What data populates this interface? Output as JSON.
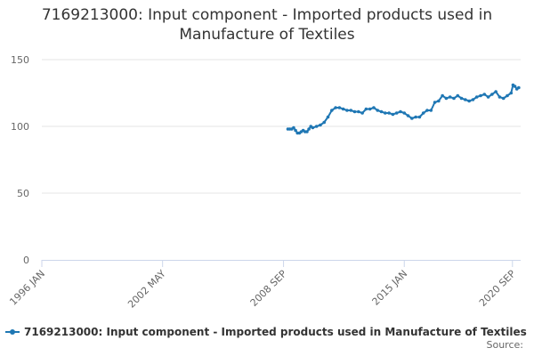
{
  "colors": {
    "series": "#1f77b4",
    "grid": "#e6e6e6",
    "axis": "#ccd6eb"
  },
  "chart_data": {
    "type": "line",
    "title": "7169213000: Input component - Imported products used in Manufacture of Textiles",
    "title_lines": [
      "7169213000: Input component - Imported products used in",
      "Manufacture of Textiles"
    ],
    "xlabel": "",
    "ylabel": "",
    "ylim": [
      0,
      150
    ],
    "y_ticks": [
      0,
      50,
      100,
      150
    ],
    "x_range": [
      1996.0,
      2021.1
    ],
    "x_ticks": [
      {
        "label": "1996 JAN",
        "x": 1996.0
      },
      {
        "label": "2002 MAY",
        "x": 2002.33
      },
      {
        "label": "2008 SEP",
        "x": 2008.67
      },
      {
        "label": "2015 JAN",
        "x": 2015.0
      },
      {
        "label": "2020 SEP",
        "x": 2020.67
      }
    ],
    "legend_position": "bottom",
    "series": [
      {
        "name": "7169213000: Input component - Imported products used in Manufacture of Textiles",
        "x": [
          2008.9,
          2009.0,
          2009.1,
          2009.2,
          2009.3,
          2009.4,
          2009.5,
          2009.6,
          2009.7,
          2009.8,
          2009.9,
          2010.0,
          2010.1,
          2010.2,
          2010.4,
          2010.6,
          2010.8,
          2011.0,
          2011.2,
          2011.4,
          2011.6,
          2011.8,
          2012.0,
          2012.2,
          2012.4,
          2012.6,
          2012.8,
          2013.0,
          2013.2,
          2013.4,
          2013.6,
          2013.8,
          2014.0,
          2014.2,
          2014.4,
          2014.6,
          2014.8,
          2015.0,
          2015.2,
          2015.4,
          2015.6,
          2015.8,
          2016.0,
          2016.2,
          2016.4,
          2016.6,
          2016.8,
          2017.0,
          2017.2,
          2017.4,
          2017.6,
          2017.8,
          2018.0,
          2018.2,
          2018.4,
          2018.6,
          2018.8,
          2019.0,
          2019.2,
          2019.4,
          2019.6,
          2019.8,
          2020.0,
          2020.2,
          2020.4,
          2020.6,
          2020.7,
          2020.8,
          2020.9,
          2021.0
        ],
        "values": [
          98,
          98,
          98,
          99,
          97,
          95,
          95,
          96,
          97,
          96,
          96,
          98,
          100,
          99,
          100,
          101,
          103,
          107,
          112,
          114,
          114,
          113,
          112,
          112,
          111,
          111,
          110,
          113,
          113,
          114,
          112,
          111,
          110,
          110,
          109,
          110,
          111,
          110,
          108,
          106,
          107,
          107,
          110,
          112,
          112,
          118,
          119,
          123,
          121,
          122,
          121,
          123,
          121,
          120,
          119,
          120,
          122,
          123,
          124,
          122,
          124,
          126,
          122,
          121,
          123,
          125,
          131,
          130,
          128,
          129
        ]
      }
    ]
  },
  "legend": {
    "label": "7169213000: Input component - Imported products used in Manufacture of Textiles"
  },
  "source": {
    "label": "Source:"
  }
}
